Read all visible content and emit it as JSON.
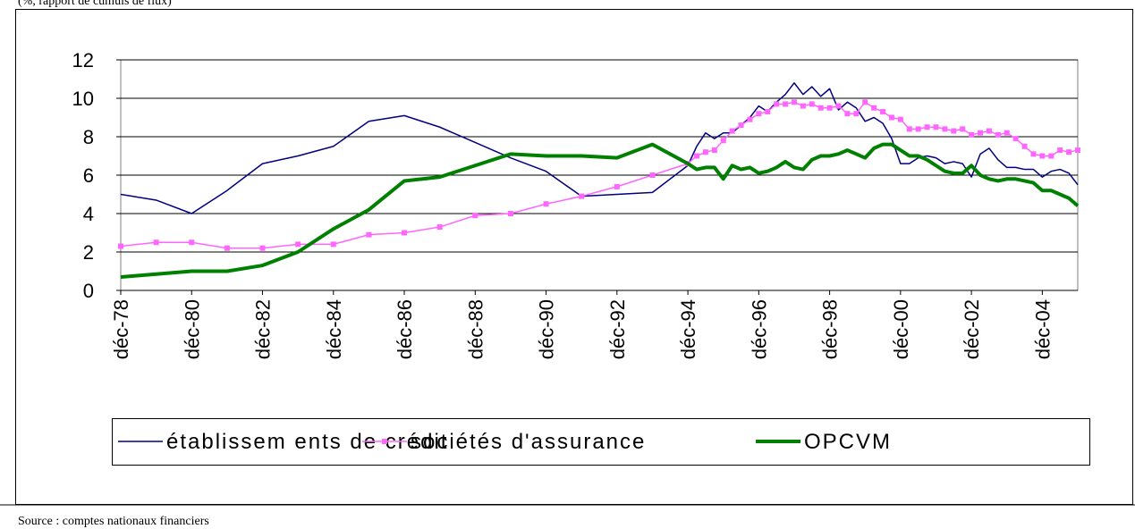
{
  "chart_data": {
    "type": "line",
    "subtitle": "(%, rapport de cumuls de flux)",
    "source": "Source : comptes nationaux financiers",
    "x": [
      1978,
      1979,
      1980,
      1981,
      1982,
      1983,
      1984,
      1985,
      1986,
      1987,
      1988,
      1989,
      1990,
      1991,
      1992,
      1993,
      1994,
      1994.25,
      1994.5,
      1994.75,
      1995,
      1995.25,
      1995.5,
      1995.75,
      1996,
      1996.25,
      1996.5,
      1996.75,
      1997,
      1997.25,
      1997.5,
      1997.75,
      1998,
      1998.25,
      1998.5,
      1998.75,
      1999,
      1999.25,
      1999.5,
      1999.75,
      2000,
      2000.25,
      2000.5,
      2000.75,
      2001,
      2001.25,
      2001.5,
      2001.75,
      2002,
      2002.25,
      2002.5,
      2002.75,
      2003,
      2003.25,
      2003.5,
      2003.75,
      2004,
      2004.25,
      2004.5,
      2004.75,
      2005
    ],
    "series": [
      {
        "name": "établissem ents de crédit",
        "color": "#000080",
        "line_width": 1.5,
        "marker": null,
        "values": [
          5.0,
          4.7,
          4.0,
          5.2,
          6.6,
          7.0,
          7.5,
          8.8,
          9.1,
          8.5,
          7.7,
          6.9,
          6.2,
          4.9,
          5.0,
          5.1,
          6.5,
          7.5,
          8.2,
          7.9,
          8.2,
          8.2,
          8.6,
          9.0,
          9.6,
          9.3,
          9.8,
          10.2,
          10.8,
          10.2,
          10.6,
          10.1,
          10.5,
          9.4,
          9.8,
          9.5,
          8.8,
          9.0,
          8.7,
          7.9,
          6.6,
          6.6,
          6.9,
          7.0,
          6.9,
          6.6,
          6.7,
          6.6,
          5.9,
          7.1,
          7.4,
          6.8,
          6.4,
          6.4,
          6.3,
          6.3,
          5.9,
          6.2,
          6.3,
          6.1,
          5.5
        ]
      },
      {
        "name": "sociétés d'assurance",
        "color": "#ff66ff",
        "line_width": 1.5,
        "marker": "square",
        "values": [
          2.3,
          2.5,
          2.5,
          2.2,
          2.2,
          2.4,
          2.4,
          2.9,
          3.0,
          3.3,
          3.9,
          4.0,
          4.5,
          4.9,
          5.4,
          6.0,
          6.6,
          7.0,
          7.2,
          7.3,
          7.8,
          8.3,
          8.6,
          8.9,
          9.2,
          9.3,
          9.7,
          9.7,
          9.8,
          9.6,
          9.7,
          9.5,
          9.5,
          9.6,
          9.2,
          9.2,
          9.8,
          9.5,
          9.3,
          9.0,
          8.9,
          8.4,
          8.4,
          8.5,
          8.5,
          8.4,
          8.3,
          8.4,
          8.1,
          8.2,
          8.3,
          8.1,
          8.2,
          7.9,
          7.5,
          7.1,
          7.0,
          7.0,
          7.3,
          7.2,
          7.3
        ]
      },
      {
        "name": "OPCVM",
        "color": "#008000",
        "line_width": 4,
        "marker": null,
        "values": [
          0.7,
          0.85,
          1.0,
          1.0,
          1.3,
          2.0,
          3.2,
          4.2,
          5.7,
          5.9,
          6.5,
          7.1,
          7.0,
          7.0,
          6.9,
          7.6,
          6.6,
          6.3,
          6.4,
          6.4,
          5.8,
          6.5,
          6.3,
          6.4,
          6.1,
          6.2,
          6.4,
          6.7,
          6.4,
          6.3,
          6.8,
          7.0,
          7.0,
          7.1,
          7.3,
          7.1,
          6.9,
          7.4,
          7.6,
          7.6,
          7.3,
          7.0,
          7.0,
          6.8,
          6.5,
          6.2,
          6.1,
          6.1,
          6.5,
          6.0,
          5.8,
          5.7,
          5.8,
          5.8,
          5.7,
          5.6,
          5.2,
          5.2,
          5.0,
          4.8,
          4.4
        ]
      }
    ],
    "xlim": [
      1978,
      2005
    ],
    "xticks": [
      {
        "value": 1978,
        "label": "déc-78"
      },
      {
        "value": 1980,
        "label": "déc-80"
      },
      {
        "value": 1982,
        "label": "déc-82"
      },
      {
        "value": 1984,
        "label": "déc-84"
      },
      {
        "value": 1986,
        "label": "déc-86"
      },
      {
        "value": 1988,
        "label": "déc-88"
      },
      {
        "value": 1990,
        "label": "déc-90"
      },
      {
        "value": 1992,
        "label": "déc-92"
      },
      {
        "value": 1994,
        "label": "déc-94"
      },
      {
        "value": 1996,
        "label": "déc-96"
      },
      {
        "value": 1998,
        "label": "déc-98"
      },
      {
        "value": 2000,
        "label": "déc-00"
      },
      {
        "value": 2002,
        "label": "déc-02"
      },
      {
        "value": 2004,
        "label": "déc-04"
      }
    ],
    "ylim": [
      0,
      12
    ],
    "yticks": [
      0,
      2,
      4,
      6,
      8,
      10,
      12
    ],
    "grid": true,
    "legend": "bottom"
  }
}
